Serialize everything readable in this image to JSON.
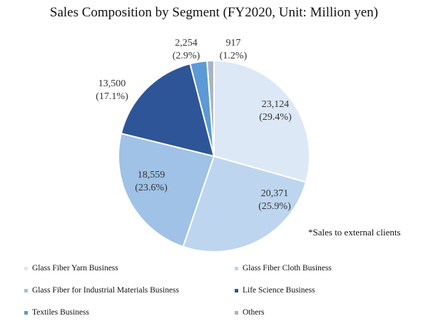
{
  "chart_data": {
    "type": "pie",
    "title": "Sales Composition by Segment (FY2020, Unit: Million yen)",
    "footnote": "*Sales to external clients",
    "start_angle_deg": 0,
    "direction": "clockwise",
    "legend_position": "bottom",
    "slices": [
      {
        "label": "Glass Fiber Yarn Business",
        "value": 23124,
        "value_text": "23,124",
        "percent_text": "(29.4%)",
        "color": "#dde8f6"
      },
      {
        "label": "Glass Fiber Cloth Business",
        "value": 20371,
        "value_text": "20,371",
        "percent_text": "(25.9%)",
        "color": "#bdd5ef"
      },
      {
        "label": "Glass Fiber for Industrial Materials Business",
        "value": 18559,
        "value_text": "18,559",
        "percent_text": "(23.6%)",
        "color": "#9fc2e6"
      },
      {
        "label": "Life Science Business",
        "value": 13500,
        "value_text": "13,500",
        "percent_text": "(17.1%)",
        "color": "#2e5598"
      },
      {
        "label": "Textiles Business",
        "value": 2254,
        "value_text": "2,254",
        "percent_text": "(2.9%)",
        "color": "#5b9ad5"
      },
      {
        "label": "Others",
        "value": 917,
        "value_text": "917",
        "percent_text": "(1.2%)",
        "color": "#a9b4c2"
      }
    ]
  }
}
